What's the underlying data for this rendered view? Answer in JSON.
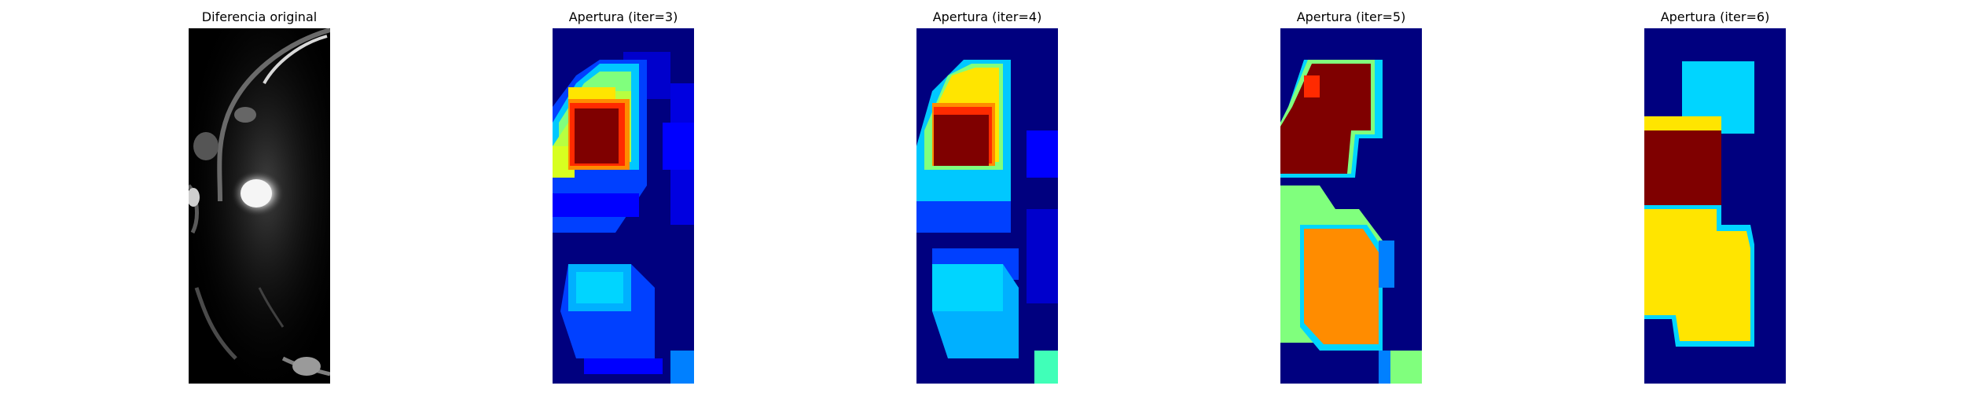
{
  "figure": {
    "panels": [
      {
        "title": "Diferencia original"
      },
      {
        "title": "Apertura (iter=3)"
      },
      {
        "title": "Apertura (iter=4)"
      },
      {
        "title": "Apertura (iter=5)"
      },
      {
        "title": "Apertura (iter=6)"
      }
    ]
  },
  "colors": {
    "jet_darkblue": "#00007f",
    "jet_blue": "#0000ff",
    "jet_midblue": "#0040ff",
    "jet_lightblue": "#0080ff",
    "jet_cyan": "#00d5ff",
    "jet_green": "#80ff7d",
    "jet_yellow": "#ffe500",
    "jet_orange": "#ff8c00",
    "jet_red": "#ff2a00",
    "jet_darkred": "#7f0000"
  }
}
